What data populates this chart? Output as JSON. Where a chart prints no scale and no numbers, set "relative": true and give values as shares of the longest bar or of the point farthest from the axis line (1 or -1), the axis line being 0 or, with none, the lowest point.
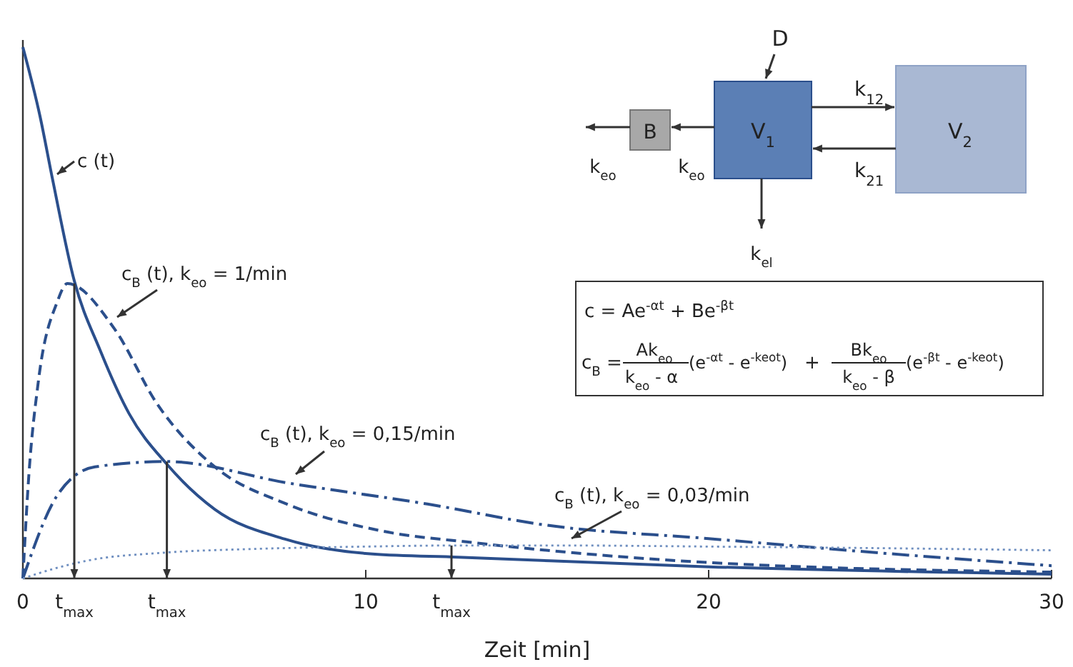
{
  "chart_data": {
    "type": "line",
    "relative": true,
    "xlabel": "Zeit [min]",
    "xlim": [
      0,
      30
    ],
    "xticks": [
      0,
      10,
      20,
      30
    ],
    "marker": "none",
    "series": [
      {
        "name": "c (t)",
        "color": "#2b4f8c",
        "line_style": "solid",
        "x": [
          0,
          0.5,
          0.87,
          1.5,
          2.25,
          3.1,
          4.2,
          5.6,
          7.7,
          10.2,
          12.7,
          20,
          30
        ],
        "values": [
          1,
          0.87,
          0.75,
          0.56,
          0.43,
          0.31,
          0.215,
          0.13,
          0.073,
          0.046,
          0.04,
          0.022,
          0.008
        ]
      },
      {
        "name": "c$_{B}$ (t), k$_{eo}$ = 1/min",
        "color": "#2b4f8c",
        "line_style": "dashed",
        "x": [
          0,
          0.17,
          0.45,
          1,
          1.3,
          2.67,
          3.9,
          5.6,
          7.7,
          10.5,
          13.2,
          20,
          30
        ],
        "values": [
          0,
          0.19,
          0.37,
          0.52,
          0.555,
          0.47,
          0.33,
          0.21,
          0.14,
          0.089,
          0.067,
          0.03,
          0.012
        ]
      },
      {
        "name": "c$_{B}$ (t), k$_{eo}$ = 0,15/min",
        "color": "#2b4f8c",
        "line_style": "dashdot",
        "x": [
          0,
          1,
          2.1,
          4.2,
          7.7,
          11.8,
          15.3,
          20,
          25,
          30
        ],
        "values": [
          0,
          0.156,
          0.21,
          0.22,
          0.18,
          0.14,
          0.1,
          0.075,
          0.048,
          0.024
        ]
      },
      {
        "name": "c$_{B}$ (t), k$_{eo}$ = 0,03/min",
        "color": "#6f8fc0",
        "line_style": "dotted",
        "x": [
          0,
          1,
          2,
          4,
          7,
          10,
          12.5,
          16,
          20,
          25,
          30
        ],
        "values": [
          0,
          0.02,
          0.035,
          0.048,
          0.056,
          0.06,
          0.062,
          0.062,
          0.06,
          0.057,
          0.053
        ]
      }
    ],
    "annotations": [
      "D",
      "B",
      "V$_{1}$",
      "V$_{2}$",
      "k$_{12}$",
      "k$_{21}$",
      "k$_{eo}$",
      "k$_{eo}$",
      "k$_{el}$",
      "c = Ae$^{-αt}$ + Be$^{-βt}$",
      "c$_{B}$ =",
      "Ak$_{eo}$",
      "k$_{eo}$ - α",
      "(e$^{-αt}$ - e$^{-keot}$)",
      "+",
      "Bk$_{eo}$",
      "k$_{eo}$ - β",
      "(e$^{-βt}$ - e$^{-keot}$)",
      {
        "text": "t$_{max}$",
        "x": 1.5,
        "y": 0.555
      },
      {
        "text": "t$_{max}$",
        "x": 4.2,
        "y": 0.22
      },
      {
        "text": "t$_{max}$",
        "x": 12.5,
        "y": 0.062
      }
    ]
  }
}
